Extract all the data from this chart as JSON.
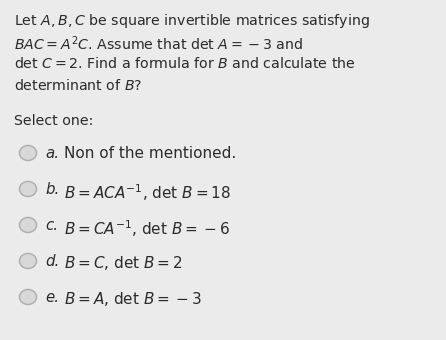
{
  "background_color": "#ebebeb",
  "text_color": "#2b2b2b",
  "circle_color": "#b0b0b0",
  "circle_fill": "#d8d8d8",
  "title_lines": [
    "Let $\\mathit{A, B, C}$ be square invertible matrices satisfying",
    "$BAC = A^2C$. Assume that det $A = -3$ and",
    "det $C = 2$. Find a formula for $B$ and calculate the",
    "determinant of $B$?"
  ],
  "select_label": "Select one:",
  "options": [
    {
      "label": "a.",
      "text": "Non of the mentioned.",
      "math": false
    },
    {
      "label": "b.",
      "text": "$B = ACA^{-1}$, det $B = 18$",
      "math": true
    },
    {
      "label": "c.",
      "text": "$B = CA^{-1}$, det $B = -6$",
      "math": true
    },
    {
      "label": "d.",
      "text": "$B = C$, det $B = 2$",
      "math": true
    },
    {
      "label": "e.",
      "text": "$B = A$, det $B = -3$",
      "math": true
    }
  ],
  "title_fontsize": 10.2,
  "option_fontsize": 11.0,
  "select_fontsize": 10.2,
  "label_fontsize": 10.8
}
